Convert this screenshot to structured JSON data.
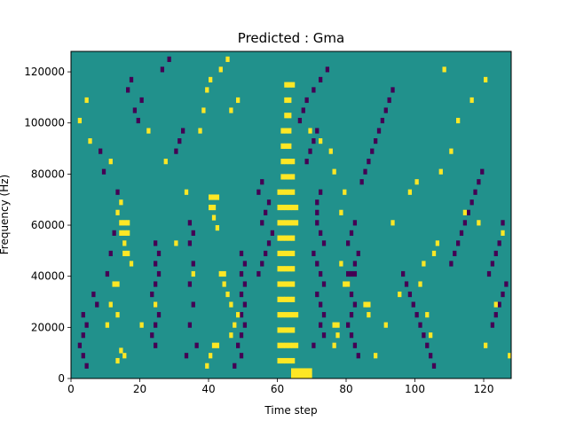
{
  "chart_data": {
    "type": "heatmap",
    "title": "Predicted : Gma",
    "xlabel": "Time step",
    "ylabel": "Frequency (Hz)",
    "xlim": [
      0,
      128
    ],
    "ylim": [
      0,
      128000
    ],
    "x_ticks": [
      0,
      20,
      40,
      60,
      80,
      100,
      120
    ],
    "y_ticks": [
      0,
      20000,
      40000,
      60000,
      80000,
      100000,
      120000
    ],
    "n_time_steps": 128,
    "n_freq_bins": 64,
    "freq_bin_width_hz": 2000,
    "value_levels": [
      0,
      1,
      2
    ],
    "colormap": "viridis",
    "colors": {
      "0": "#440154",
      "1": "#21918c",
      "2": "#fde725"
    },
    "background_value": 1,
    "cells_value_2_note": "[time_step, freq_bin] pairs with value 2 (yellow)",
    "cells_value_2": [
      [
        60,
        3
      ],
      [
        61,
        3
      ],
      [
        62,
        3
      ],
      [
        63,
        3
      ],
      [
        64,
        3
      ],
      [
        60,
        6
      ],
      [
        61,
        6
      ],
      [
        62,
        6
      ],
      [
        63,
        6
      ],
      [
        64,
        6
      ],
      [
        65,
        6
      ],
      [
        60,
        9
      ],
      [
        61,
        9
      ],
      [
        62,
        9
      ],
      [
        63,
        9
      ],
      [
        64,
        9
      ],
      [
        60,
        12
      ],
      [
        61,
        12
      ],
      [
        62,
        12
      ],
      [
        63,
        12
      ],
      [
        64,
        12
      ],
      [
        65,
        12
      ],
      [
        60,
        15
      ],
      [
        61,
        15
      ],
      [
        62,
        15
      ],
      [
        63,
        15
      ],
      [
        64,
        15
      ],
      [
        60,
        18
      ],
      [
        61,
        18
      ],
      [
        62,
        18
      ],
      [
        63,
        18
      ],
      [
        64,
        18
      ],
      [
        60,
        21
      ],
      [
        61,
        21
      ],
      [
        62,
        21
      ],
      [
        63,
        21
      ],
      [
        64,
        21
      ],
      [
        60,
        24
      ],
      [
        61,
        24
      ],
      [
        62,
        24
      ],
      [
        63,
        24
      ],
      [
        64,
        24
      ],
      [
        60,
        27
      ],
      [
        61,
        27
      ],
      [
        62,
        27
      ],
      [
        63,
        27
      ],
      [
        64,
        27
      ],
      [
        60,
        30
      ],
      [
        61,
        30
      ],
      [
        62,
        30
      ],
      [
        63,
        30
      ],
      [
        64,
        30
      ],
      [
        65,
        30
      ],
      [
        60,
        33
      ],
      [
        61,
        33
      ],
      [
        62,
        33
      ],
      [
        63,
        33
      ],
      [
        64,
        33
      ],
      [
        65,
        33
      ],
      [
        60,
        36
      ],
      [
        61,
        36
      ],
      [
        62,
        36
      ],
      [
        63,
        36
      ],
      [
        64,
        36
      ],
      [
        61,
        39
      ],
      [
        62,
        39
      ],
      [
        63,
        39
      ],
      [
        64,
        39
      ],
      [
        61,
        42
      ],
      [
        62,
        42
      ],
      [
        63,
        42
      ],
      [
        64,
        42
      ],
      [
        61,
        45
      ],
      [
        62,
        45
      ],
      [
        63,
        45
      ],
      [
        61,
        48
      ],
      [
        62,
        48
      ],
      [
        63,
        48
      ],
      [
        62,
        51
      ],
      [
        63,
        51
      ],
      [
        62,
        54
      ],
      [
        63,
        54
      ],
      [
        62,
        57
      ],
      [
        63,
        57
      ],
      [
        64,
        57
      ],
      [
        64,
        1
      ],
      [
        65,
        1
      ],
      [
        66,
        1
      ],
      [
        67,
        1
      ],
      [
        68,
        1
      ],
      [
        69,
        1
      ],
      [
        64,
        0
      ],
      [
        65,
        0
      ],
      [
        66,
        0
      ],
      [
        67,
        0
      ],
      [
        68,
        0
      ],
      [
        69,
        0
      ],
      [
        14,
        30
      ],
      [
        15,
        30
      ],
      [
        16,
        30
      ],
      [
        14,
        28
      ],
      [
        15,
        28
      ],
      [
        16,
        28
      ],
      [
        15,
        24
      ],
      [
        16,
        24
      ],
      [
        15,
        26
      ],
      [
        17,
        22
      ],
      [
        13,
        32
      ],
      [
        14,
        34
      ],
      [
        40,
        35
      ],
      [
        41,
        35
      ],
      [
        42,
        35
      ],
      [
        40,
        33
      ],
      [
        41,
        33
      ],
      [
        41,
        31
      ],
      [
        42,
        29
      ],
      [
        43,
        20
      ],
      [
        44,
        20
      ],
      [
        45,
        16
      ],
      [
        46,
        14
      ],
      [
        44,
        18
      ],
      [
        48,
        12
      ],
      [
        47,
        10
      ],
      [
        46,
        8
      ],
      [
        41,
        6
      ],
      [
        42,
        6
      ],
      [
        40,
        4
      ],
      [
        39,
        2
      ],
      [
        12,
        18
      ],
      [
        13,
        18
      ],
      [
        11,
        14
      ],
      [
        13,
        12
      ],
      [
        10,
        10
      ],
      [
        14,
        5
      ],
      [
        15,
        4
      ],
      [
        13,
        3
      ],
      [
        76,
        10
      ],
      [
        77,
        10
      ],
      [
        77,
        8
      ],
      [
        76,
        6
      ],
      [
        79,
        18
      ],
      [
        80,
        18
      ],
      [
        78,
        22
      ],
      [
        85,
        14
      ],
      [
        86,
        14
      ],
      [
        86,
        12
      ],
      [
        2,
        50
      ],
      [
        4,
        54
      ],
      [
        5,
        46
      ],
      [
        11,
        42
      ],
      [
        69,
        48
      ],
      [
        72,
        46
      ],
      [
        75,
        44
      ],
      [
        76,
        40
      ],
      [
        79,
        36
      ],
      [
        78,
        32
      ],
      [
        88,
        4
      ],
      [
        91,
        10
      ],
      [
        95,
        16
      ],
      [
        101,
        18
      ],
      [
        102,
        22
      ],
      [
        103,
        12
      ],
      [
        104,
        8
      ],
      [
        105,
        24
      ],
      [
        106,
        26
      ],
      [
        93,
        30
      ],
      [
        98,
        36
      ],
      [
        100,
        38
      ],
      [
        107,
        40
      ],
      [
        110,
        44
      ],
      [
        114,
        32
      ],
      [
        118,
        30
      ],
      [
        120,
        6
      ],
      [
        123,
        14
      ],
      [
        125,
        28
      ],
      [
        127,
        4
      ],
      [
        108,
        60
      ],
      [
        112,
        50
      ],
      [
        116,
        54
      ],
      [
        120,
        58
      ],
      [
        39,
        56
      ],
      [
        40,
        58
      ],
      [
        43,
        60
      ],
      [
        45,
        62
      ],
      [
        38,
        52
      ],
      [
        37,
        48
      ],
      [
        46,
        52
      ],
      [
        48,
        54
      ],
      [
        27,
        42
      ],
      [
        22,
        48
      ],
      [
        30,
        26
      ],
      [
        33,
        36
      ],
      [
        35,
        20
      ],
      [
        20,
        10
      ],
      [
        24,
        14
      ]
    ],
    "cells_value_0_note": "[time_step, freq_bin] pairs with value 0 (purple)",
    "cells_value_0": [
      [
        71,
        34
      ],
      [
        72,
        36
      ],
      [
        71,
        32
      ],
      [
        71,
        30
      ],
      [
        72,
        28
      ],
      [
        73,
        26
      ],
      [
        70,
        24
      ],
      [
        71,
        22
      ],
      [
        72,
        20
      ],
      [
        73,
        18
      ],
      [
        71,
        16
      ],
      [
        72,
        14
      ],
      [
        73,
        12
      ],
      [
        72,
        10
      ],
      [
        73,
        8
      ],
      [
        70,
        6
      ],
      [
        80,
        20
      ],
      [
        81,
        20
      ],
      [
        82,
        20
      ],
      [
        80,
        18
      ],
      [
        81,
        16
      ],
      [
        82,
        14
      ],
      [
        81,
        12
      ],
      [
        80,
        10
      ],
      [
        81,
        8
      ],
      [
        82,
        6
      ],
      [
        83,
        4
      ],
      [
        82,
        22
      ],
      [
        83,
        24
      ],
      [
        80,
        26
      ],
      [
        81,
        28
      ],
      [
        82,
        30
      ],
      [
        49,
        24
      ],
      [
        50,
        22
      ],
      [
        49,
        20
      ],
      [
        50,
        18
      ],
      [
        49,
        16
      ],
      [
        50,
        14
      ],
      [
        49,
        12
      ],
      [
        50,
        10
      ],
      [
        49,
        8
      ],
      [
        48,
        6
      ],
      [
        49,
        4
      ],
      [
        47,
        2
      ],
      [
        24,
        26
      ],
      [
        25,
        24
      ],
      [
        24,
        22
      ],
      [
        25,
        20
      ],
      [
        24,
        18
      ],
      [
        23,
        16
      ],
      [
        24,
        14
      ],
      [
        25,
        12
      ],
      [
        24,
        10
      ],
      [
        23,
        8
      ],
      [
        24,
        6
      ],
      [
        34,
        30
      ],
      [
        35,
        28
      ],
      [
        34,
        26
      ],
      [
        35,
        22
      ],
      [
        34,
        18
      ],
      [
        35,
        14
      ],
      [
        34,
        10
      ],
      [
        36,
        6
      ],
      [
        33,
        4
      ],
      [
        3,
        12
      ],
      [
        4,
        10
      ],
      [
        3,
        8
      ],
      [
        2,
        6
      ],
      [
        3,
        4
      ],
      [
        4,
        2
      ],
      [
        6,
        16
      ],
      [
        7,
        14
      ],
      [
        10,
        20
      ],
      [
        11,
        24
      ],
      [
        12,
        28
      ],
      [
        13,
        36
      ],
      [
        9,
        40
      ],
      [
        8,
        44
      ],
      [
        54,
        20
      ],
      [
        55,
        22
      ],
      [
        56,
        24
      ],
      [
        57,
        26
      ],
      [
        58,
        28
      ],
      [
        55,
        30
      ],
      [
        56,
        32
      ],
      [
        57,
        34
      ],
      [
        54,
        36
      ],
      [
        55,
        38
      ],
      [
        68,
        42
      ],
      [
        69,
        44
      ],
      [
        70,
        46
      ],
      [
        71,
        48
      ],
      [
        66,
        50
      ],
      [
        67,
        52
      ],
      [
        68,
        54
      ],
      [
        70,
        56
      ],
      [
        72,
        58
      ],
      [
        74,
        60
      ],
      [
        84,
        38
      ],
      [
        85,
        40
      ],
      [
        86,
        42
      ],
      [
        87,
        44
      ],
      [
        88,
        46
      ],
      [
        89,
        48
      ],
      [
        90,
        50
      ],
      [
        91,
        52
      ],
      [
        92,
        54
      ],
      [
        93,
        56
      ],
      [
        96,
        20
      ],
      [
        97,
        18
      ],
      [
        98,
        16
      ],
      [
        99,
        14
      ],
      [
        100,
        12
      ],
      [
        101,
        10
      ],
      [
        102,
        8
      ],
      [
        103,
        6
      ],
      [
        104,
        4
      ],
      [
        105,
        2
      ],
      [
        110,
        22
      ],
      [
        111,
        24
      ],
      [
        112,
        26
      ],
      [
        113,
        28
      ],
      [
        114,
        30
      ],
      [
        115,
        32
      ],
      [
        116,
        34
      ],
      [
        117,
        36
      ],
      [
        118,
        38
      ],
      [
        119,
        40
      ],
      [
        122,
        10
      ],
      [
        123,
        12
      ],
      [
        124,
        14
      ],
      [
        125,
        16
      ],
      [
        126,
        18
      ],
      [
        121,
        20
      ],
      [
        122,
        22
      ],
      [
        123,
        24
      ],
      [
        124,
        26
      ],
      [
        125,
        30
      ],
      [
        16,
        56
      ],
      [
        17,
        58
      ],
      [
        18,
        52
      ],
      [
        19,
        50
      ],
      [
        20,
        54
      ],
      [
        26,
        60
      ],
      [
        28,
        62
      ],
      [
        30,
        44
      ],
      [
        31,
        46
      ],
      [
        32,
        48
      ]
    ]
  }
}
